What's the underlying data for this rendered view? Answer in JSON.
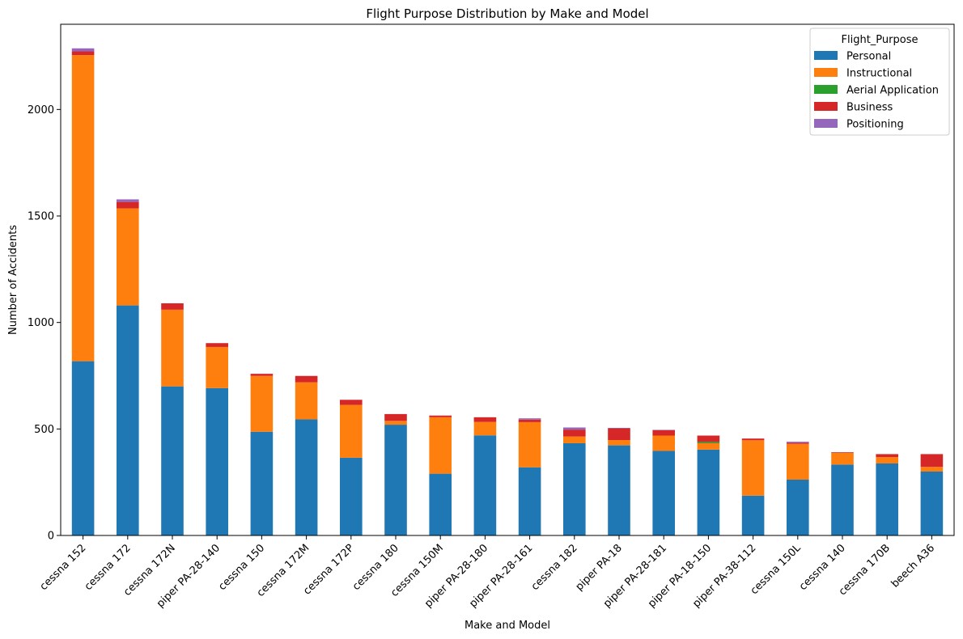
{
  "chart_data": {
    "type": "bar",
    "stacked": true,
    "title": "Flight Purpose Distribution by Make and Model",
    "xlabel": "Make and Model",
    "ylabel": "Number of Accidents",
    "ylim": [
      0,
      2400
    ],
    "yticks": [
      0,
      500,
      1000,
      1500,
      2000
    ],
    "legend_title": "Flight_Purpose",
    "legend_position": "top-right",
    "categories": [
      "cessna 152",
      "cessna 172",
      "cessna 172N",
      "piper PA-28-140",
      "cessna 150",
      "cessna 172M",
      "cessna 172P",
      "cessna 180",
      "cessna 150M",
      "piper PA-28-180",
      "piper PA-28-161",
      "cessna 182",
      "piper PA-18",
      "piper PA-28-181",
      "piper PA-18-150",
      "piper PA-38-112",
      "cessna 150L",
      "cessna 140",
      "cessna 170B",
      "beech A36"
    ],
    "series": [
      {
        "name": "Personal",
        "color": "#1f77b4",
        "values": [
          818,
          1080,
          700,
          692,
          487,
          545,
          365,
          520,
          290,
          470,
          320,
          433,
          423,
          397,
          403,
          187,
          262,
          333,
          338,
          300
        ]
      },
      {
        "name": "Instructional",
        "color": "#ff7f0e",
        "values": [
          1437,
          456,
          360,
          193,
          262,
          174,
          248,
          18,
          265,
          63,
          212,
          32,
          25,
          72,
          30,
          260,
          168,
          55,
          30,
          22
        ]
      },
      {
        "name": "Aerial Application",
        "color": "#2ca02c",
        "values": [
          0,
          0,
          0,
          0,
          0,
          0,
          0,
          0,
          0,
          0,
          0,
          0,
          0,
          0,
          6,
          0,
          0,
          0,
          0,
          0
        ]
      },
      {
        "name": "Business",
        "color": "#d62728",
        "values": [
          18,
          30,
          30,
          18,
          10,
          30,
          24,
          32,
          8,
          22,
          12,
          32,
          55,
          25,
          30,
          8,
          5,
          3,
          14,
          60
        ]
      },
      {
        "name": "Positioning",
        "color": "#9467bd",
        "values": [
          14,
          12,
          0,
          0,
          0,
          0,
          0,
          0,
          0,
          0,
          6,
          10,
          2,
          2,
          0,
          0,
          5,
          0,
          0,
          0
        ]
      }
    ]
  }
}
